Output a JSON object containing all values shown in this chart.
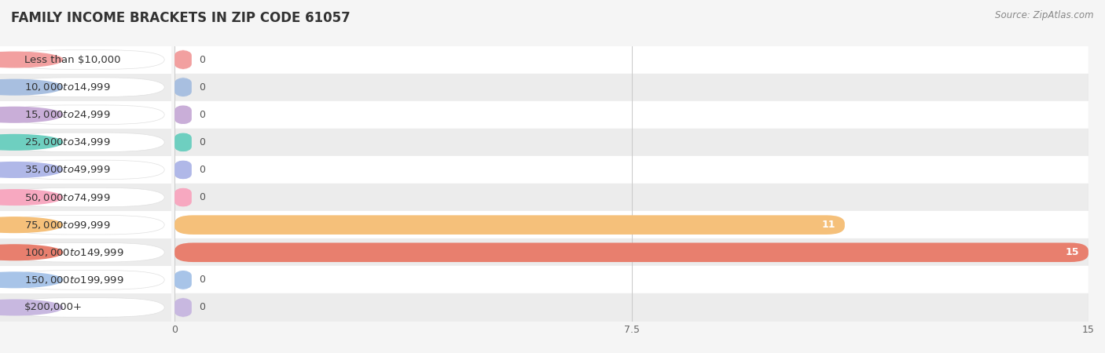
{
  "title": "FAMILY INCOME BRACKETS IN ZIP CODE 61057",
  "source": "Source: ZipAtlas.com",
  "categories": [
    "Less than $10,000",
    "$10,000 to $14,999",
    "$15,000 to $24,999",
    "$25,000 to $34,999",
    "$35,000 to $49,999",
    "$50,000 to $74,999",
    "$75,000 to $99,999",
    "$100,000 to $149,999",
    "$150,000 to $199,999",
    "$200,000+"
  ],
  "values": [
    0,
    0,
    0,
    0,
    0,
    0,
    11,
    15,
    0,
    0
  ],
  "bar_colors": [
    "#f2a0a0",
    "#a8bfe0",
    "#c9aed8",
    "#6ecfc0",
    "#b0b8e8",
    "#f7a8c0",
    "#f5c07a",
    "#e87f6e",
    "#a8c4e8",
    "#c8b8e0"
  ],
  "xlim": [
    0,
    15
  ],
  "xticks": [
    0,
    7.5,
    15
  ],
  "background_color": "#f5f5f5",
  "row_colors": [
    "#ffffff",
    "#ececec"
  ],
  "title_fontsize": 12,
  "source_fontsize": 8.5,
  "label_fontsize": 9.5,
  "value_fontsize": 9
}
